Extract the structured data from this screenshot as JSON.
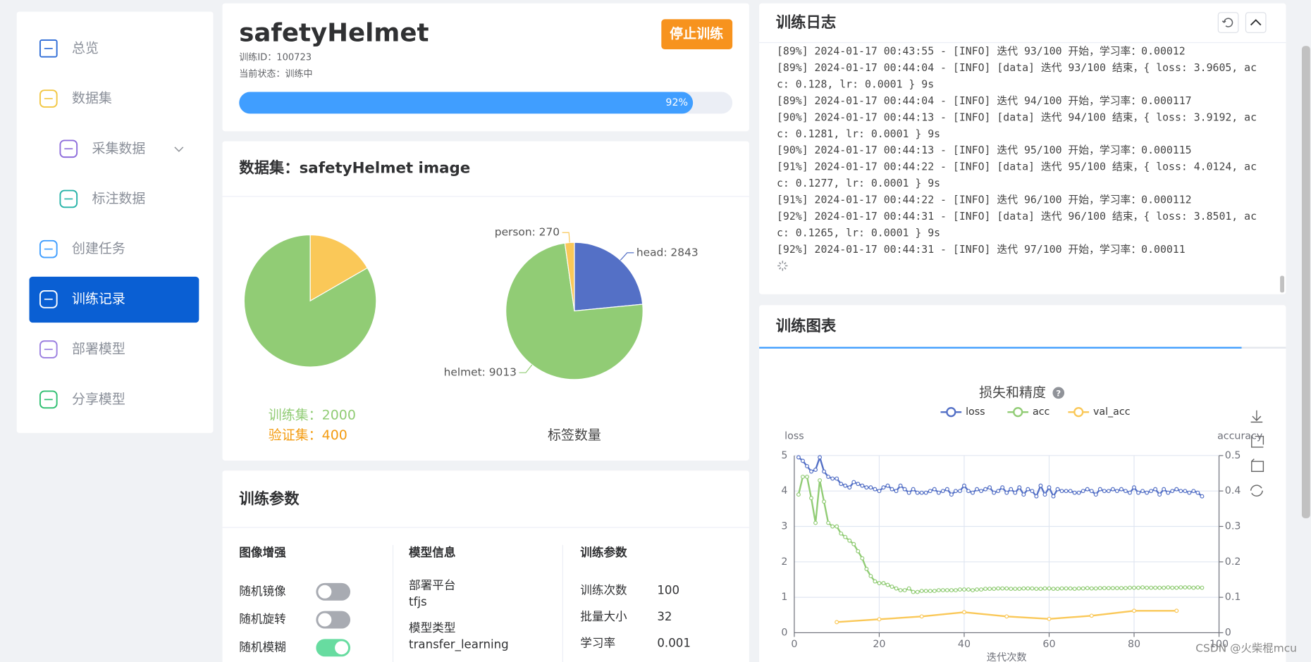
{
  "sidebar": {
    "items": [
      {
        "label": "总览",
        "level": 1
      },
      {
        "label": "数据集",
        "level": 1
      },
      {
        "label": "采集数据",
        "level": 2
      },
      {
        "label": "标注数据",
        "level": 2
      },
      {
        "label": "创建任务",
        "level": 1
      },
      {
        "label": "训练记录",
        "level": 1,
        "active": true
      },
      {
        "label": "部署模型",
        "level": 1
      },
      {
        "label": "分享模型",
        "level": 1
      }
    ]
  },
  "task": {
    "title": "safetyHelmet",
    "id": "训练ID：100723",
    "status": "当前状态：训练中",
    "button": "停止训练",
    "progress": 92,
    "progress_label": "92%"
  },
  "dataset": {
    "title": "数据集：safetyHelmet image",
    "split": {
      "type": "pie",
      "labels": [
        "训练集：2000",
        "验证集：400"
      ],
      "values": [
        2000,
        400
      ],
      "colors": [
        "#91cc75",
        "#fac858"
      ],
      "text_colors": [
        "#91cc75",
        "#f39c12"
      ]
    },
    "label_counts": {
      "type": "pie",
      "title": "标签数量",
      "labels": [
        "head: 2843",
        "helmet: 9013",
        "person: 270"
      ],
      "values": [
        2843,
        9013,
        270
      ],
      "colors": [
        "#5470c6",
        "#91cc75",
        "#fac858"
      ]
    }
  },
  "params": {
    "title": "训练参数",
    "augment": {
      "title": "图像增强",
      "items": [
        {
          "label": "随机镜像",
          "on": false
        },
        {
          "label": "随机旋转",
          "on": false
        },
        {
          "label": "随机模糊",
          "on": true
        }
      ]
    },
    "model": {
      "title": "模型信息",
      "fields": [
        {
          "label": "部署平台",
          "value": "tfjs"
        },
        {
          "label": "模型类型",
          "value": "transfer_learning"
        }
      ]
    },
    "training": {
      "title": "训练参数",
      "fields": [
        {
          "label": "训练次数",
          "value": 100
        },
        {
          "label": "批量大小",
          "value": 32
        },
        {
          "label": "学习率",
          "value": 0.001
        }
      ]
    }
  },
  "log": {
    "title": "训练日志",
    "lines": [
      "[89%] 2024-01-17 00:43:55 - [INFO] 迭代 93/100 开始，学习率：0.00012",
      "[89%] 2024-01-17 00:44:04 - [INFO] [data] 迭代 93/100 结束，{ loss: 3.9605, ac",
      "c: 0.128, lr: 0.0001 } 9s",
      "[89%] 2024-01-17 00:44:04 - [INFO] 迭代 94/100 开始，学习率：0.000117",
      "[90%] 2024-01-17 00:44:13 - [INFO] [data] 迭代 94/100 结束，{ loss: 3.9192, ac",
      "c: 0.1281, lr: 0.0001 } 9s",
      "[90%] 2024-01-17 00:44:13 - [INFO] 迭代 95/100 开始，学习率：0.000115",
      "[91%] 2024-01-17 00:44:22 - [INFO] [data] 迭代 95/100 结束，{ loss: 4.0124, ac",
      "c: 0.1277, lr: 0.0001 } 9s",
      "[91%] 2024-01-17 00:44:22 - [INFO] 迭代 96/100 开始，学习率：0.000112",
      "[92%] 2024-01-17 00:44:31 - [INFO] [data] 迭代 96/100 结束，{ loss: 3.8501, ac",
      "c: 0.1265, lr: 0.0001 } 9s",
      "[92%] 2024-01-17 00:44:31 - [INFO] 迭代 97/100 开始，学习率：0.00011"
    ]
  },
  "chart_panel": {
    "title": "训练图表"
  },
  "chart_data": {
    "type": "line",
    "title": "损失和精度",
    "help": "?",
    "xlabel": "迭代次数",
    "ylabel": "loss",
    "y2label": "accuracy",
    "xlim": [
      0,
      100
    ],
    "xticks": [
      0,
      20,
      40,
      60,
      80,
      100
    ],
    "ylim": [
      0,
      5
    ],
    "yticks": [
      0,
      1,
      2,
      3,
      4,
      5
    ],
    "y2lim": [
      0,
      0.5
    ],
    "y2ticks": [
      0,
      0.1,
      0.2,
      0.3,
      0.4,
      0.5
    ],
    "grid": true,
    "series": [
      {
        "name": "loss",
        "color": "#5470c6",
        "x": [
          1,
          2,
          3,
          4,
          5,
          6,
          7,
          8,
          9,
          10,
          11,
          12,
          13,
          14,
          15,
          16,
          17,
          18,
          19,
          20,
          21,
          22,
          23,
          24,
          25,
          26,
          27,
          28,
          29,
          30,
          31,
          32,
          33,
          34,
          35,
          36,
          37,
          38,
          39,
          40,
          41,
          42,
          43,
          44,
          45,
          46,
          47,
          48,
          49,
          50,
          51,
          52,
          53,
          54,
          55,
          56,
          57,
          58,
          59,
          60,
          61,
          62,
          63,
          64,
          65,
          66,
          67,
          68,
          69,
          70,
          71,
          72,
          73,
          74,
          75,
          76,
          77,
          78,
          79,
          80,
          81,
          82,
          83,
          84,
          85,
          86,
          87,
          88,
          89,
          90,
          91,
          92,
          93,
          94,
          95,
          96
        ],
        "values": [
          4.95,
          4.85,
          4.7,
          4.55,
          4.6,
          4.95,
          4.55,
          4.4,
          4.35,
          4.35,
          4.2,
          4.15,
          4.1,
          4.25,
          4.2,
          4.15,
          4.1,
          4.1,
          4.05,
          4.0,
          4.1,
          4.15,
          4.05,
          4.0,
          4.15,
          4.05,
          3.95,
          4.05,
          3.95,
          3.95,
          3.95,
          4.0,
          4.05,
          3.95,
          4.0,
          4.05,
          3.9,
          4.0,
          4.0,
          4.15,
          4.0,
          3.95,
          4.05,
          4.0,
          4.05,
          4.1,
          3.95,
          4.0,
          4.1,
          3.95,
          4.05,
          3.95,
          4.1,
          3.9,
          4.05,
          4.0,
          3.85,
          4.15,
          3.9,
          4.1,
          3.85,
          4.05,
          4.0,
          4.0,
          4.0,
          3.95,
          3.95,
          4.0,
          4.05,
          4.0,
          3.9,
          4.05,
          4.0,
          4.0,
          4.05,
          4.0,
          4.05,
          4.0,
          3.95,
          4.1,
          3.95,
          4.0,
          3.95,
          4.0,
          4.05,
          3.9,
          4.05,
          3.95,
          4.0,
          4.05,
          4.0,
          4.0,
          3.95,
          4.0,
          3.95,
          3.85
        ]
      },
      {
        "name": "acc",
        "color": "#91cc75",
        "axis": "y2",
        "x": [
          1,
          2,
          3,
          4,
          5,
          6,
          7,
          8,
          9,
          10,
          11,
          12,
          13,
          14,
          15,
          16,
          17,
          18,
          19,
          20,
          21,
          22,
          23,
          24,
          25,
          26,
          27,
          28,
          29,
          30,
          31,
          32,
          33,
          34,
          35,
          36,
          37,
          38,
          39,
          40,
          41,
          42,
          43,
          44,
          45,
          46,
          47,
          48,
          49,
          50,
          51,
          52,
          53,
          54,
          55,
          56,
          57,
          58,
          59,
          60,
          61,
          62,
          63,
          64,
          65,
          66,
          67,
          68,
          69,
          70,
          71,
          72,
          73,
          74,
          75,
          76,
          77,
          78,
          79,
          80,
          81,
          82,
          83,
          84,
          85,
          86,
          87,
          88,
          89,
          90,
          91,
          92,
          93,
          94,
          95,
          96
        ],
        "values": [
          0.39,
          0.44,
          0.44,
          0.38,
          0.31,
          0.43,
          0.37,
          0.31,
          0.3,
          0.3,
          0.28,
          0.27,
          0.26,
          0.25,
          0.23,
          0.21,
          0.18,
          0.16,
          0.145,
          0.14,
          0.14,
          0.135,
          0.13,
          0.125,
          0.12,
          0.12,
          0.125,
          0.115,
          0.115,
          0.118,
          0.118,
          0.118,
          0.118,
          0.12,
          0.12,
          0.12,
          0.12,
          0.12,
          0.122,
          0.122,
          0.122,
          0.12,
          0.122,
          0.122,
          0.124,
          0.124,
          0.124,
          0.125,
          0.125,
          0.125,
          0.124,
          0.124,
          0.124,
          0.125,
          0.125,
          0.125,
          0.124,
          0.124,
          0.125,
          0.125,
          0.124,
          0.124,
          0.125,
          0.125,
          0.125,
          0.124,
          0.125,
          0.125,
          0.126,
          0.125,
          0.125,
          0.126,
          0.126,
          0.126,
          0.126,
          0.126,
          0.126,
          0.126,
          0.127,
          0.127,
          0.127,
          0.128,
          0.127,
          0.127,
          0.127,
          0.127,
          0.127,
          0.128,
          0.127,
          0.127,
          0.128,
          0.128,
          0.128,
          0.127,
          0.128,
          0.127
        ]
      },
      {
        "name": "val_acc",
        "color": "#fac858",
        "axis": "y2",
        "x": [
          10,
          20,
          30,
          40,
          50,
          60,
          70,
          80,
          90
        ],
        "values": [
          0.03,
          0.038,
          0.046,
          0.058,
          0.046,
          0.039,
          0.048,
          0.062,
          0.062
        ]
      }
    ]
  },
  "watermark": "CSDN @火柴棍mcu"
}
